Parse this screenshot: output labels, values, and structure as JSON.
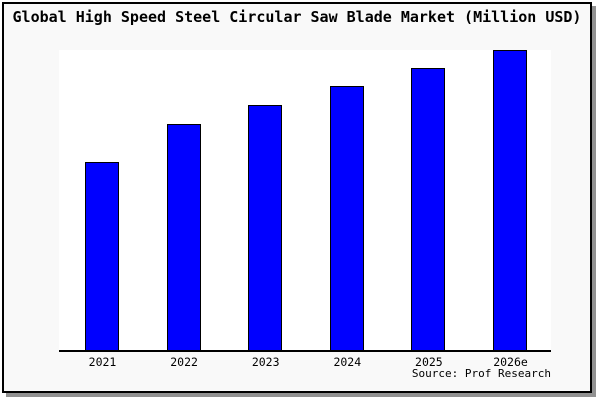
{
  "window": {
    "background_color": "#f9f9f9",
    "frame_border_color": "#000000",
    "shadow_color": "#919191"
  },
  "chart_data": {
    "type": "bar",
    "title": "Global High Speed Steel Circular Saw Blade Market (Million USD)",
    "categories": [
      "2021",
      "2022",
      "2023",
      "2024",
      "2025",
      "2026e"
    ],
    "values": [
      189,
      227,
      246,
      265,
      283,
      301
    ],
    "values_note": "y-axis shows no tick labels or gridlines; values are relative magnitudes estimated from bar heights, tallest bar (2026e) = 301 units",
    "xlabel": "",
    "ylabel": "",
    "ylim": [
      0,
      310
    ],
    "grid": false,
    "legend": false,
    "bar_color": "#0000ff",
    "bar_border_color": "#000000",
    "plot_background": "#ffffff",
    "axis_line_color": "#000000",
    "axes_shown": [
      "bottom"
    ]
  },
  "source": {
    "text": "Source: Prof Research"
  }
}
